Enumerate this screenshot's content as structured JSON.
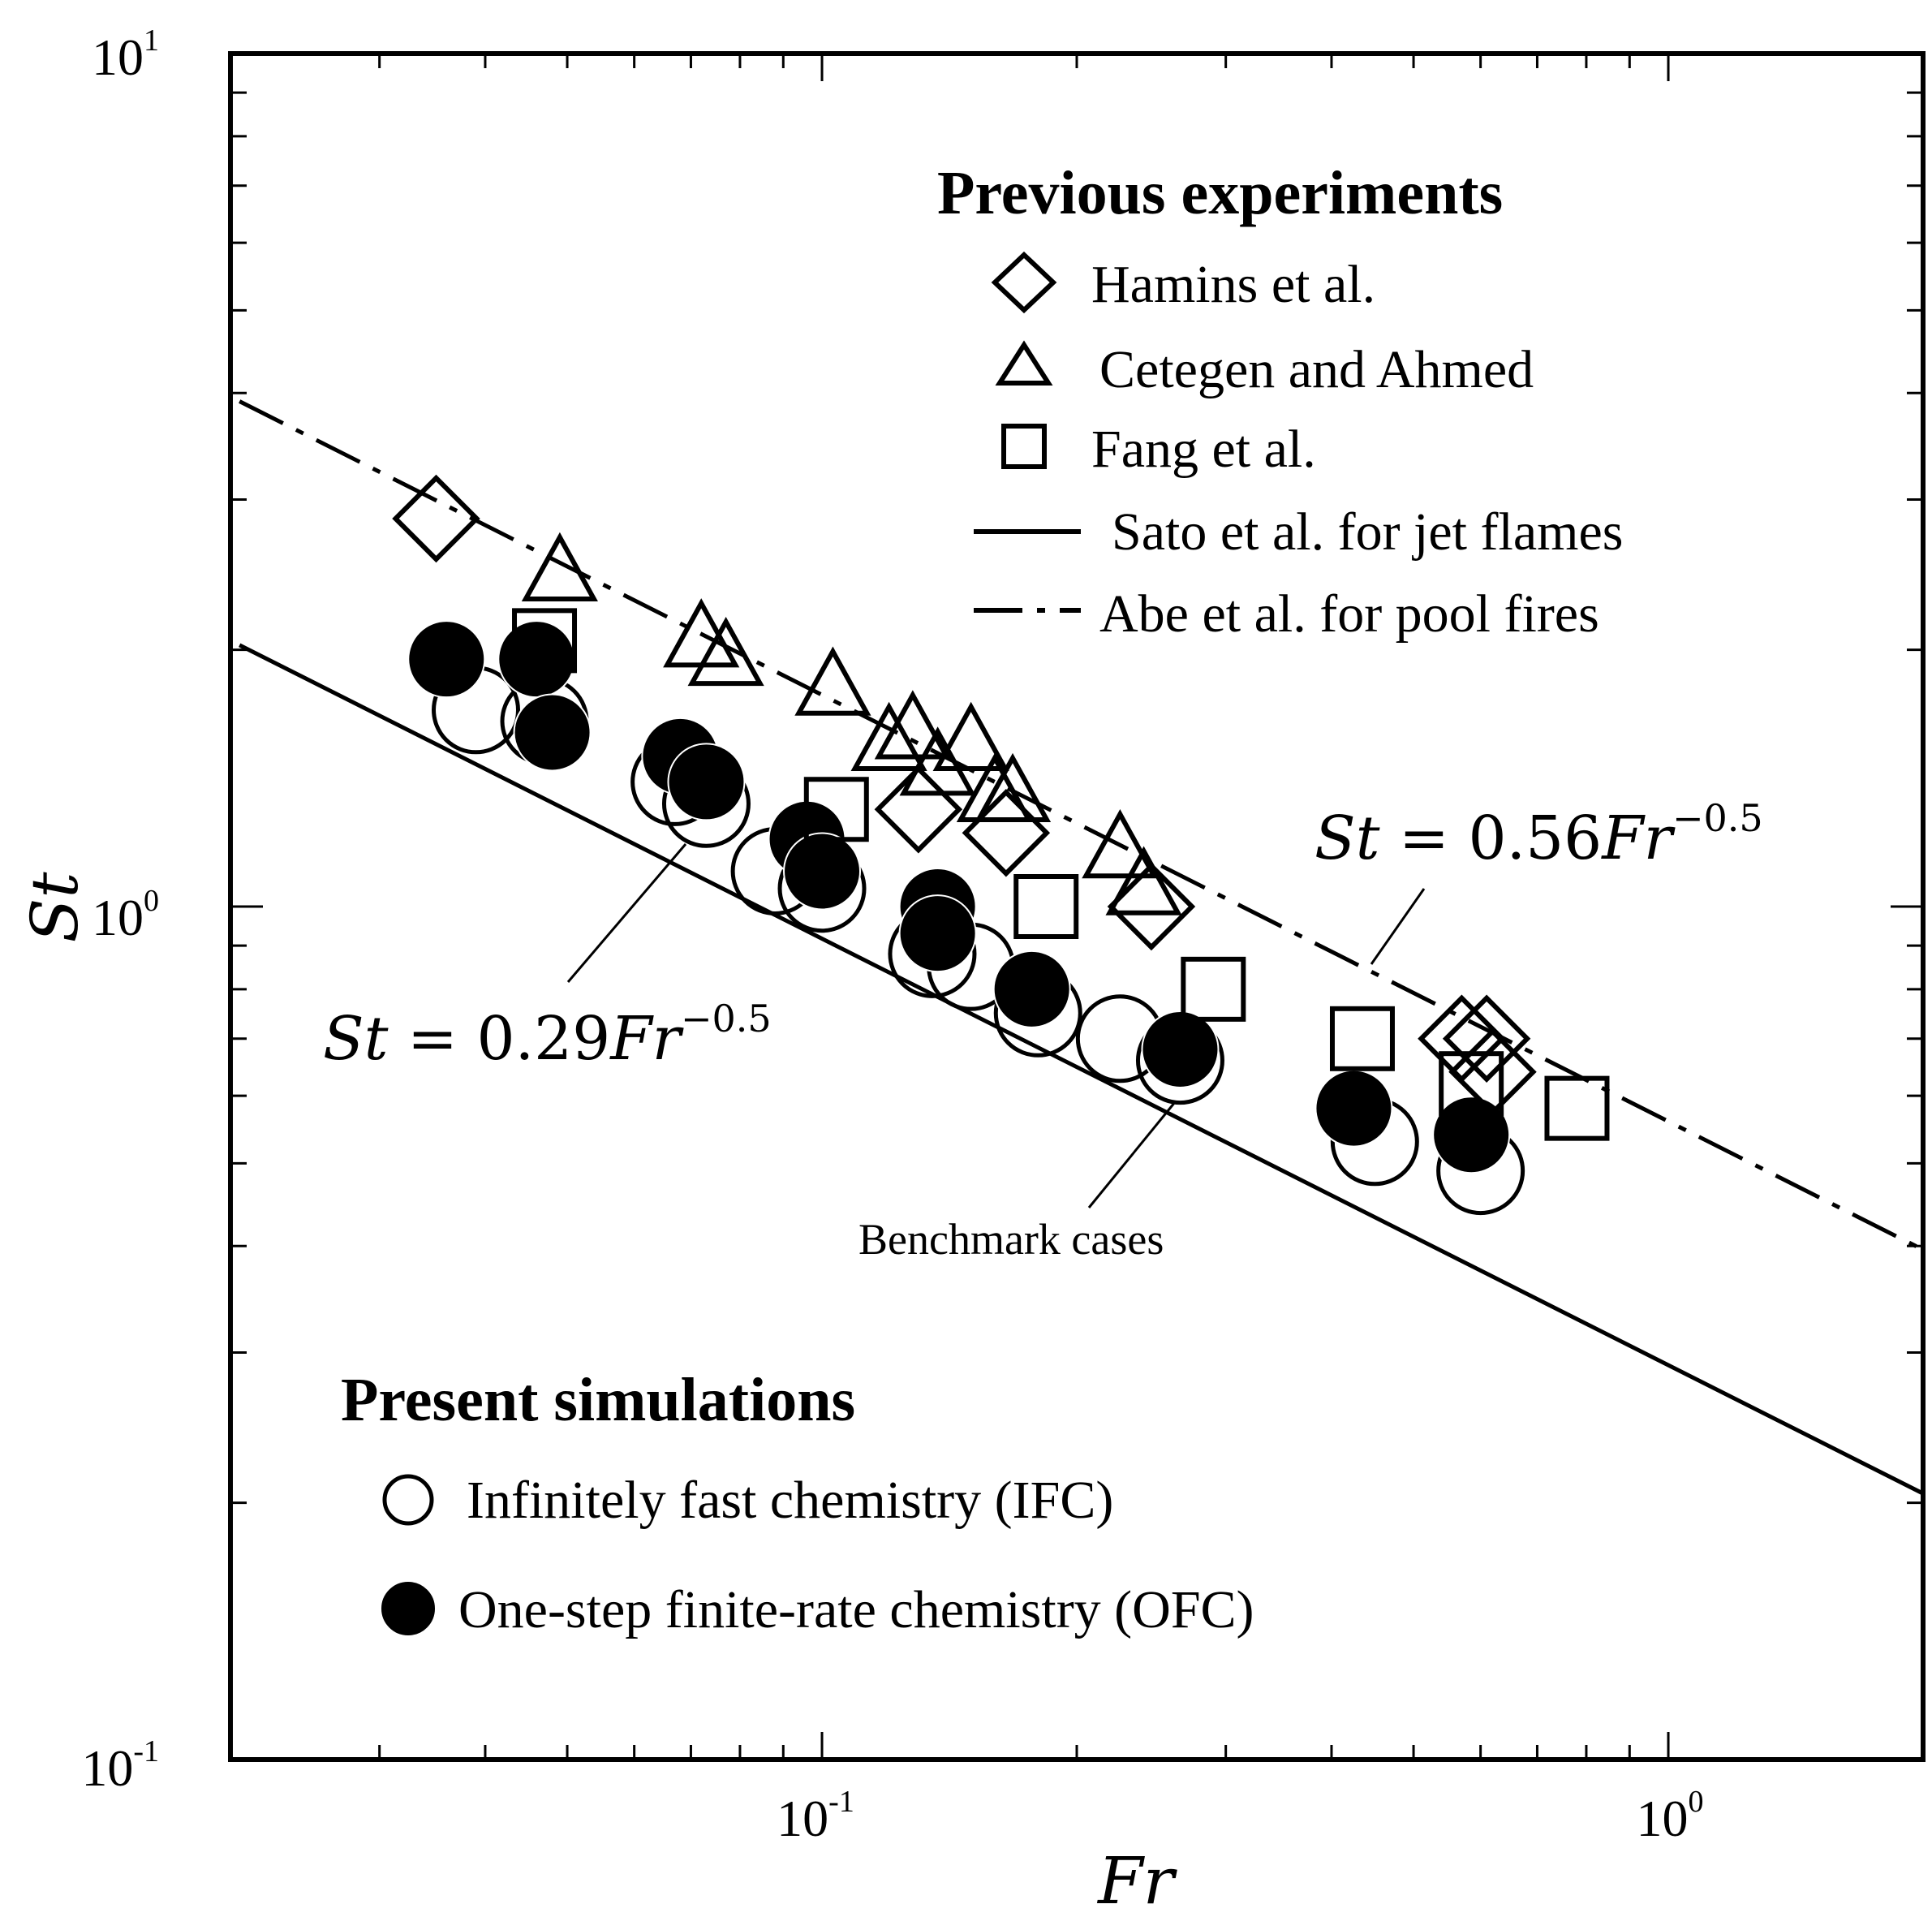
{
  "chart_data": {
    "type": "scatter",
    "xscale": "log",
    "yscale": "log",
    "xlim": [
      0.02,
      2
    ],
    "ylim": [
      0.1,
      10
    ],
    "xlabel": "Fr",
    "ylabel": "St",
    "x_ticks": [
      {
        "value": 0.1,
        "base": "10",
        "exp": "-1"
      },
      {
        "value": 1,
        "base": "10",
        "exp": "0"
      }
    ],
    "y_ticks": [
      {
        "value": 0.1,
        "base": "10",
        "exp": "-1"
      },
      {
        "value": 1,
        "base": "10",
        "exp": "0"
      },
      {
        "value": 10,
        "base": "10",
        "exp": "1"
      }
    ],
    "legend_prev": {
      "title": "Previous experiments",
      "items": [
        {
          "symbol": "diamond",
          "label": "Hamins et al."
        },
        {
          "symbol": "triangle",
          "label": "Cetegen and Ahmed"
        },
        {
          "symbol": "square",
          "label": "Fang et al."
        },
        {
          "symbol": "solid-line",
          "label": "Sato et al. for jet flames"
        },
        {
          "symbol": "dashdot-line",
          "label": "Abe et al. for pool fires"
        }
      ]
    },
    "legend_sim": {
      "title": "Present simulations",
      "items": [
        {
          "symbol": "open-circle",
          "label": "Infinitely fast chemistry (IFC)"
        },
        {
          "symbol": "filled-circle",
          "label": "One-step finite-rate chemistry (OFC)"
        }
      ]
    },
    "annotations": {
      "upper_fit": {
        "lhs": "St",
        "eq": " = 0.56",
        "var": "Fr",
        "exp": "−0.5"
      },
      "lower_fit": {
        "lhs": "St",
        "eq": " = 0.29",
        "var": "Fr",
        "exp": "−0.5"
      },
      "benchmark": "Benchmark cases"
    },
    "fit_lines": [
      {
        "name": "Sato et al. for jet flames",
        "coef": 0.29,
        "exponent": -0.5,
        "style": "solid"
      },
      {
        "name": "Abe et al. for pool fires",
        "coef": 0.56,
        "exponent": -0.5,
        "style": "dashdot"
      }
    ],
    "series": [
      {
        "name": "Hamins et al.",
        "marker": "diamond",
        "points": [
          [
            0.035,
            2.85
          ],
          [
            0.13,
            1.3
          ],
          [
            0.165,
            1.22
          ],
          [
            0.245,
            1.0
          ],
          [
            0.57,
            0.7
          ],
          [
            0.61,
            0.7
          ],
          [
            0.62,
            0.64
          ]
        ]
      },
      {
        "name": "Cetegen and Ahmed",
        "marker": "triangle",
        "points": [
          [
            0.049,
            2.45
          ],
          [
            0.072,
            2.05
          ],
          [
            0.077,
            1.95
          ],
          [
            0.103,
            1.8
          ],
          [
            0.12,
            1.55
          ],
          [
            0.128,
            1.6
          ],
          [
            0.137,
            1.45
          ],
          [
            0.15,
            1.55
          ],
          [
            0.16,
            1.35
          ],
          [
            0.168,
            1.35
          ],
          [
            0.225,
            1.16
          ],
          [
            0.24,
            1.05
          ]
        ]
      },
      {
        "name": "Fang et al.",
        "marker": "square",
        "points": [
          [
            0.047,
            2.05
          ],
          [
            0.104,
            1.3
          ],
          [
            0.184,
            1.0
          ],
          [
            0.29,
            0.8
          ],
          [
            0.435,
            0.7
          ],
          [
            0.585,
            0.62
          ],
          [
            0.78,
            0.58
          ]
        ]
      },
      {
        "name": "Infinitely fast chemistry (IFC)",
        "marker": "open-circle",
        "points": [
          [
            0.039,
            1.7
          ],
          [
            0.047,
            1.65
          ],
          [
            0.067,
            1.4
          ],
          [
            0.073,
            1.32
          ],
          [
            0.088,
            1.1
          ],
          [
            0.1,
            1.05
          ],
          [
            0.135,
            0.88
          ],
          [
            0.15,
            0.85
          ],
          [
            0.18,
            0.75
          ],
          [
            0.225,
            0.7
          ],
          [
            0.265,
            0.66
          ],
          [
            0.45,
            0.53
          ],
          [
            0.6,
            0.49
          ]
        ]
      },
      {
        "name": "One-step finite-rate chemistry (OFC)",
        "marker": "filled-circle",
        "points": [
          [
            0.036,
            1.95
          ],
          [
            0.046,
            1.95
          ],
          [
            0.048,
            1.6
          ],
          [
            0.068,
            1.5
          ],
          [
            0.073,
            1.4
          ],
          [
            0.096,
            1.2
          ],
          [
            0.1,
            1.1
          ],
          [
            0.137,
            1.0
          ],
          [
            0.137,
            0.93
          ],
          [
            0.177,
            0.8
          ],
          [
            0.265,
            0.68
          ],
          [
            0.425,
            0.58
          ],
          [
            0.585,
            0.54
          ]
        ]
      }
    ]
  }
}
